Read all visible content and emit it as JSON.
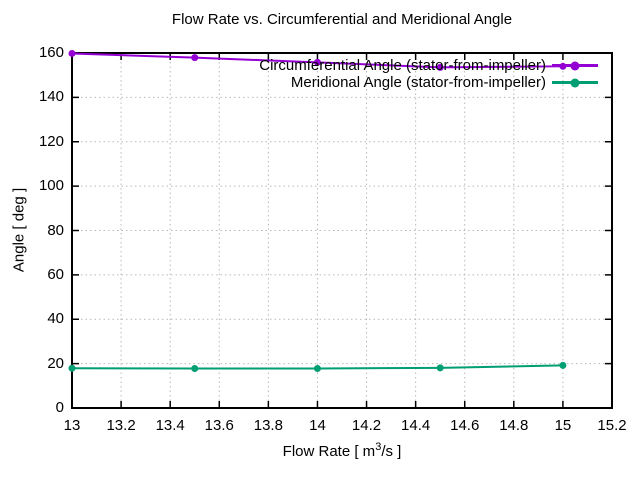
{
  "chart_data": {
    "type": "line",
    "title": "Flow Rate vs. Circumferential and Meridional Angle",
    "xlabel": "Flow Rate [ m³/s ]",
    "xlabel_parts": {
      "prefix": "Flow Rate [ m",
      "sup": "3",
      "suffix": "/s ]"
    },
    "ylabel": "Angle [ deg ]",
    "xlim": [
      13,
      15.2
    ],
    "ylim": [
      0,
      160
    ],
    "x_tick_labels": [
      "13",
      "13.2",
      "13.4",
      "13.6",
      "13.8",
      "14",
      "14.2",
      "14.4",
      "14.6",
      "14.8",
      "15",
      "15.2"
    ],
    "y_tick_labels": [
      "0",
      "20",
      "40",
      "60",
      "80",
      "100",
      "120",
      "140",
      "160"
    ],
    "grid": true,
    "legend_position": "top-right-inside",
    "x": [
      13,
      13.5,
      14,
      14.5,
      15
    ],
    "series": [
      {
        "name": "Circumferential Angle (stator-from-impeller)",
        "color": "#9400d3",
        "marker": "filled-circle",
        "values": [
          159.8,
          157.9,
          155.8,
          153.5,
          154.0
        ]
      },
      {
        "name": "Meridional Angle (stator-from-impeller)",
        "color": "#009e73",
        "marker": "filled-circle",
        "values": [
          17.9,
          17.8,
          17.8,
          18.1,
          19.2
        ]
      }
    ]
  }
}
